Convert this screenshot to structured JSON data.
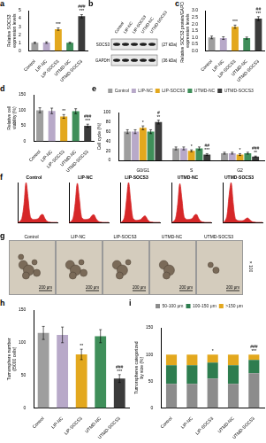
{
  "chart_data": [
    {
      "panel": "a",
      "type": "bar",
      "ylabel": [
        "Relative SOCS3",
        "expression levels"
      ],
      "categories": [
        "Control",
        "LIP-NC",
        "LIP-SOCS3",
        "UTMD-NC",
        "UTMD-SOCS3"
      ],
      "values": [
        1.0,
        1.02,
        2.7,
        1.0,
        4.3
      ],
      "errors": [
        0.08,
        0.1,
        0.15,
        0.08,
        0.2
      ],
      "colors": [
        "#9e9e9e",
        "#b8a9c9",
        "#e3a81e",
        "#3f8f5a",
        "#3b3b3b"
      ],
      "ylim": [
        0,
        5
      ],
      "yticks": [
        0,
        1,
        2,
        3,
        4,
        5
      ],
      "grid": false,
      "annotations": [
        {
          "category": "LIP-SOCS3",
          "text": "***"
        },
        {
          "category": "UTMD-SOCS3",
          "text": "***"
        },
        {
          "category": "UTMD-SOCS3",
          "text": "###"
        }
      ]
    },
    {
      "panel": "c",
      "type": "bar",
      "ylabel": [
        "Relative SOCS3 protein/GAPDH",
        "expression levels"
      ],
      "categories": [
        "Control",
        "LIP-NC",
        "LIP-SOCS3",
        "UTMD-NC",
        "UTMD-SOCS3"
      ],
      "values": [
        1.0,
        0.95,
        1.8,
        0.95,
        2.4
      ],
      "errors": [
        0.1,
        0.1,
        0.12,
        0.08,
        0.15
      ],
      "colors": [
        "#9e9e9e",
        "#b8a9c9",
        "#e3a81e",
        "#3f8f5a",
        "#3b3b3b"
      ],
      "ylim": [
        0,
        3
      ],
      "yticks": [
        {
          "value": 0,
          "label": "0.0"
        },
        {
          "value": 0.5,
          "label": "0.5"
        },
        {
          "value": 1,
          "label": "1.0"
        },
        {
          "value": 1.5,
          "label": "1.5"
        },
        {
          "value": 2,
          "label": "2.0"
        },
        {
          "value": 2.5,
          "label": "2.5"
        },
        {
          "value": 3,
          "label": "3.0"
        }
      ],
      "grid": false,
      "annotations": [
        {
          "category": "LIP-SOCS3",
          "text": "***"
        },
        {
          "category": "UTMD-SOCS3",
          "text": "***"
        },
        {
          "category": "UTMD-SOCS3",
          "text": "##"
        }
      ]
    },
    {
      "panel": "d",
      "type": "bar",
      "ylabel": [
        "Relative cell",
        "viability (%)"
      ],
      "categories": [
        "Control",
        "LIP-NC",
        "LIP-SOCS3",
        "UTMD-NC",
        "UTMD-SOCS3"
      ],
      "values": [
        100,
        98,
        80,
        97,
        50
      ],
      "errors": [
        8,
        9,
        6,
        8,
        5
      ],
      "colors": [
        "#9e9e9e",
        "#b8a9c9",
        "#e3a81e",
        "#3f8f5a",
        "#3b3b3b"
      ],
      "ylim": [
        0,
        150
      ],
      "yticks": [
        0,
        50,
        100,
        150
      ],
      "grid": false,
      "annotations": [
        {
          "category": "LIP-SOCS3",
          "text": "**"
        },
        {
          "category": "UTMD-SOCS3",
          "text": "***"
        },
        {
          "category": "UTMD-SOCS3",
          "text": "###"
        }
      ]
    },
    {
      "panel": "e",
      "type": "bar",
      "ylabel": "Cell cycle (%)",
      "categories": [
        "G0/G1",
        "S",
        "G2"
      ],
      "series": [
        {
          "name": "Control",
          "color": "#9e9e9e",
          "values": [
            60,
            25,
            15
          ],
          "errors": [
            4,
            3,
            2
          ]
        },
        {
          "name": "LIP-NC",
          "color": "#b8a9c9",
          "values": [
            60,
            25,
            15
          ],
          "errors": [
            4,
            3,
            2
          ]
        },
        {
          "name": "LIP-SOCS3",
          "color": "#e3a81e",
          "values": [
            68,
            20,
            12
          ],
          "errors": [
            4,
            2,
            2
          ]
        },
        {
          "name": "UTMD-NC",
          "color": "#3f8f5a",
          "values": [
            60,
            25,
            15
          ],
          "errors": [
            4,
            3,
            2
          ]
        },
        {
          "name": "UTMD-SOCS3",
          "color": "#3b3b3b",
          "values": [
            80,
            12,
            8
          ],
          "errors": [
            4,
            2,
            1
          ]
        }
      ],
      "ylim": [
        0,
        100
      ],
      "yticks": [
        0,
        20,
        40,
        60,
        80,
        100
      ],
      "grid": false,
      "legend": "top",
      "annotations": [
        {
          "category": "G0/G1",
          "series": "LIP-SOCS3",
          "text": "*"
        },
        {
          "category": "G0/G1",
          "series": "UTMD-SOCS3",
          "text": "**"
        },
        {
          "category": "G0/G1",
          "series": "UTMD-SOCS3",
          "text": "#"
        },
        {
          "category": "S",
          "series": "LIP-SOCS3",
          "text": "*"
        },
        {
          "category": "S",
          "series": "UTMD-SOCS3",
          "text": "***"
        },
        {
          "category": "S",
          "series": "UTMD-SOCS3",
          "text": "##"
        },
        {
          "category": "G2",
          "series": "LIP-SOCS3",
          "text": "*"
        },
        {
          "category": "G2",
          "series": "UTMD-SOCS3",
          "text": "**"
        },
        {
          "category": "G2",
          "series": "UTMD-SOCS3",
          "text": "###"
        }
      ]
    },
    {
      "panel": "h",
      "type": "bar",
      "ylabel": [
        "Tumorsphere number",
        "(/5000 cells)"
      ],
      "categories": [
        "Control",
        "LIP-NC",
        "LIP-SOCS3",
        "UTMD-NC",
        "UTMD-SOCS3"
      ],
      "values": [
        115,
        112,
        82,
        110,
        45
      ],
      "errors": [
        10,
        12,
        8,
        10,
        6
      ],
      "colors": [
        "#9e9e9e",
        "#b8a9c9",
        "#e3a81e",
        "#3f8f5a",
        "#3b3b3b"
      ],
      "ylim": [
        0,
        150
      ],
      "yticks": [
        0,
        50,
        100,
        150
      ],
      "grid": false,
      "annotations": [
        {
          "category": "LIP-SOCS3",
          "text": "**"
        },
        {
          "category": "UTMD-SOCS3",
          "text": "***"
        },
        {
          "category": "UTMD-SOCS3",
          "text": "###"
        }
      ]
    },
    {
      "panel": "i",
      "type": "bar",
      "ylabel": [
        "Tumorspheres categorized",
        "by size (%)"
      ],
      "categories": [
        "Control",
        "LIP-NC",
        "LIP-SOCS3",
        "UTMD-NC",
        "UTMD-SOCS3"
      ],
      "series": [
        {
          "name": "50-100 μm",
          "color": "#8c8c8c",
          "values": [
            45,
            45,
            55,
            45,
            65
          ]
        },
        {
          "name": "100-150 μm",
          "color": "#2e7d4f",
          "values": [
            35,
            35,
            30,
            35,
            25
          ]
        },
        {
          "name": ">150 μm",
          "color": "#e3a81e",
          "values": [
            20,
            20,
            15,
            20,
            10
          ]
        }
      ],
      "stacked": true,
      "ylim": [
        0,
        150
      ],
      "yticks": [
        0,
        50,
        100,
        150
      ],
      "grid": false,
      "legend": "top",
      "annotations": [
        {
          "category": "LIP-SOCS3",
          "text": "*"
        },
        {
          "category": "UTMD-SOCS3",
          "text": "***"
        },
        {
          "category": "UTMD-SOCS3",
          "text": "###"
        }
      ]
    }
  ],
  "cell_cycle_histograms": {
    "panel": "f",
    "charts": [
      {
        "type": "line",
        "title": "Control",
        "color": "#d62728",
        "x": [
          0,
          1,
          2,
          3,
          4,
          5,
          6,
          7,
          8,
          9,
          10,
          11,
          12,
          13,
          14,
          15,
          16,
          17,
          18,
          19
        ],
        "values": [
          0,
          2,
          10,
          45,
          100,
          60,
          15,
          8,
          7,
          8,
          10,
          18,
          20,
          10,
          3,
          1,
          0,
          0,
          0,
          0
        ],
        "xlim": [
          0,
          19
        ],
        "ylim": [
          0,
          100
        ],
        "tick_labels": false,
        "grid": false
      },
      {
        "type": "line",
        "title": "LIP-NC",
        "color": "#d62728",
        "x": [
          0,
          1,
          2,
          3,
          4,
          5,
          6,
          7,
          8,
          9,
          10,
          11,
          12,
          13,
          14,
          15,
          16,
          17,
          18,
          19
        ],
        "values": [
          0,
          2,
          11,
          48,
          98,
          58,
          14,
          8,
          7,
          8,
          10,
          17,
          19,
          9,
          3,
          1,
          0,
          0,
          0,
          0
        ],
        "xlim": [
          0,
          19
        ],
        "ylim": [
          0,
          100
        ],
        "tick_labels": false,
        "grid": false
      },
      {
        "type": "line",
        "title": "LIP-SOCS3",
        "color": "#d62728",
        "x": [
          0,
          1,
          2,
          3,
          4,
          5,
          6,
          7,
          8,
          9,
          10,
          11,
          12,
          13,
          14,
          15,
          16,
          17,
          18,
          19
        ],
        "values": [
          0,
          2,
          12,
          55,
          100,
          55,
          12,
          6,
          5,
          6,
          8,
          14,
          16,
          8,
          2,
          1,
          0,
          0,
          0,
          0
        ],
        "xlim": [
          0,
          19
        ],
        "ylim": [
          0,
          100
        ],
        "tick_labels": false,
        "grid": false
      },
      {
        "type": "line",
        "title": "UTMD-NC",
        "color": "#d62728",
        "x": [
          0,
          1,
          2,
          3,
          4,
          5,
          6,
          7,
          8,
          9,
          10,
          11,
          12,
          13,
          14,
          15,
          16,
          17,
          18,
          19
        ],
        "values": [
          0,
          2,
          10,
          46,
          97,
          59,
          15,
          8,
          7,
          8,
          10,
          18,
          20,
          10,
          3,
          1,
          0,
          0,
          0,
          0
        ],
        "xlim": [
          0,
          19
        ],
        "ylim": [
          0,
          100
        ],
        "tick_labels": false,
        "grid": false
      },
      {
        "type": "line",
        "title": "UTMD-SOCS3",
        "color": "#d62728",
        "x": [
          0,
          1,
          2,
          3,
          4,
          5,
          6,
          7,
          8,
          9,
          10,
          11,
          12,
          13,
          14,
          15,
          16,
          17,
          18,
          19
        ],
        "values": [
          0,
          3,
          15,
          65,
          100,
          50,
          10,
          5,
          4,
          4,
          5,
          9,
          11,
          6,
          2,
          1,
          0,
          0,
          0,
          0
        ],
        "xlim": [
          0,
          19
        ],
        "ylim": [
          0,
          100
        ],
        "tick_labels": false,
        "grid": false
      }
    ]
  },
  "blot": {
    "panel": "b",
    "lanes": [
      "Control",
      "LIP-NC",
      "LIP-SOCS3",
      "UTMD-NC",
      "UTMD-SOCS3"
    ],
    "bands": [
      {
        "name": "SOCS3",
        "size": "(27 kDa)"
      },
      {
        "name": "GAPDH",
        "size": "(36 kDa)"
      }
    ]
  },
  "micrographs": {
    "panel": "g",
    "titles": [
      "Control",
      "LIP-NC",
      "LIP-SOCS3",
      "UTMD-NC",
      "UTMD-SOCS3"
    ],
    "scale_bar": "200 μm",
    "magnification": "× 100"
  }
}
